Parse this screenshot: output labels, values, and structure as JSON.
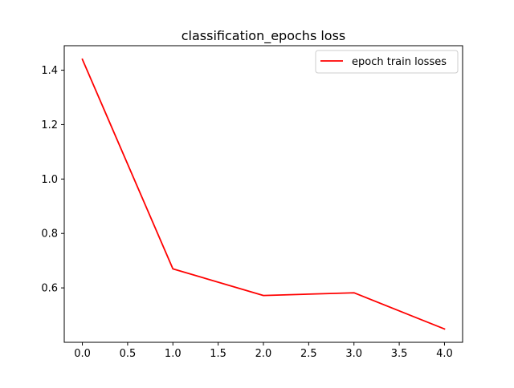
{
  "chart_data": {
    "type": "line",
    "title": "classification_epochs loss",
    "xlabel": "",
    "ylabel": "",
    "x": [
      0,
      1,
      2,
      3,
      4
    ],
    "series": [
      {
        "name": "epoch train losses",
        "color": "#ff0000",
        "values": [
          1.44,
          0.67,
          0.572,
          0.582,
          0.449
        ]
      }
    ],
    "xlim": [
      -0.2,
      4.2
    ],
    "ylim": [
      0.4,
      1.49
    ],
    "xticks": [
      0.0,
      0.5,
      1.0,
      1.5,
      2.0,
      2.5,
      3.0,
      3.5,
      4.0
    ],
    "xtick_labels": [
      "0.0",
      "0.5",
      "1.0",
      "1.5",
      "2.0",
      "2.5",
      "3.0",
      "3.5",
      "4.0"
    ],
    "yticks": [
      0.6,
      0.8,
      1.0,
      1.2,
      1.4
    ],
    "ytick_labels": [
      "0.6",
      "0.8",
      "1.0",
      "1.2",
      "1.4"
    ],
    "grid": false,
    "legend_position": "upper right"
  }
}
